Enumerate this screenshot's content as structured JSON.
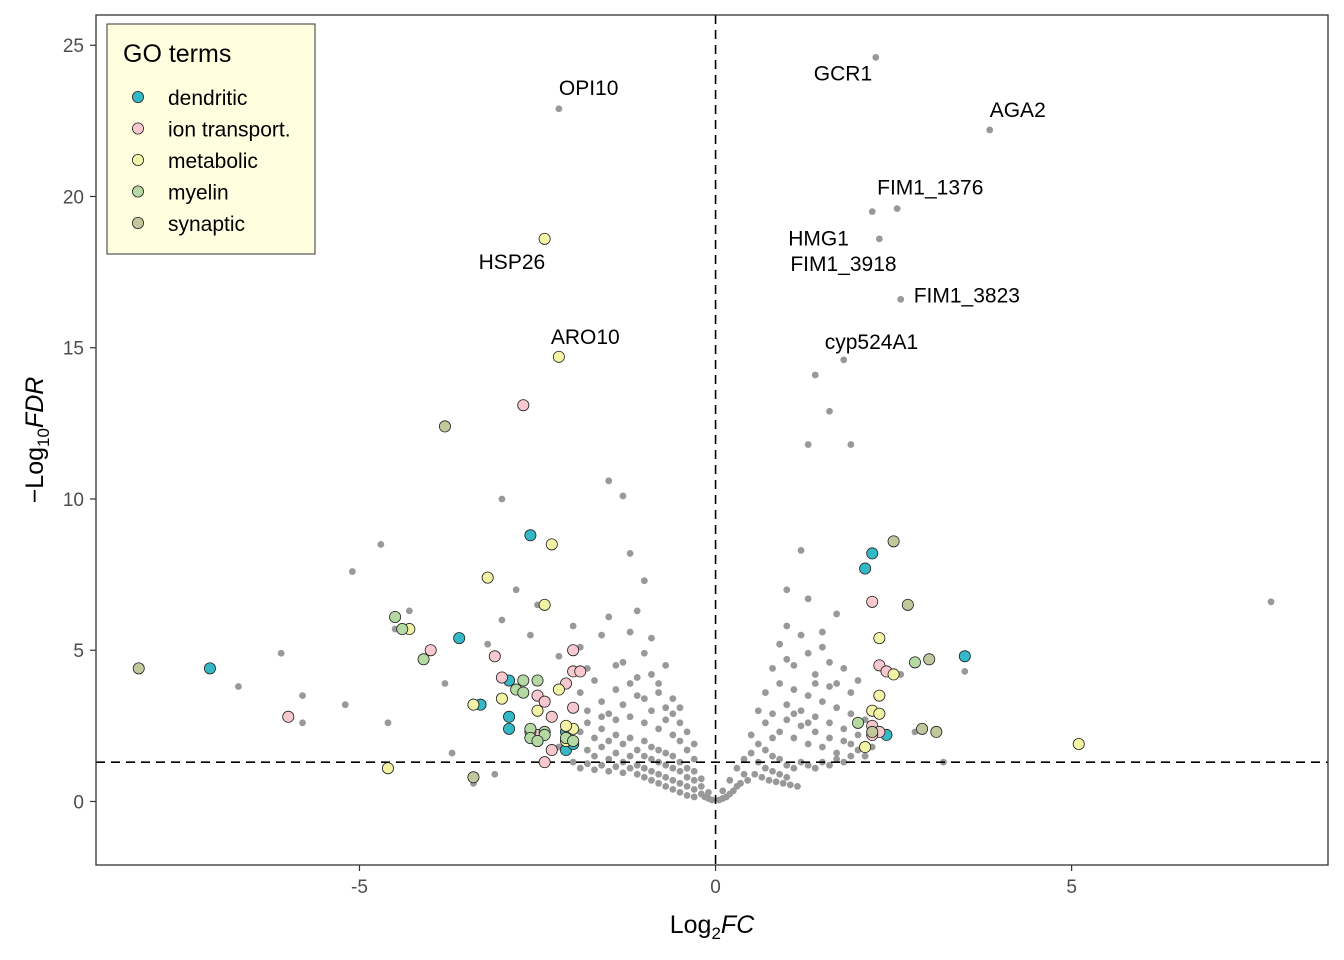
{
  "chart_data": {
    "type": "scatter",
    "title": "",
    "xlabel": "Log2FC",
    "ylabel": "-Log10FDR",
    "xlim": [
      -8.7,
      8.6
    ],
    "ylim": [
      -2.1,
      26.0
    ],
    "x_ticks": [
      -5,
      0,
      5
    ],
    "x_tick_labels": [
      "-5",
      "0",
      "5"
    ],
    "y_ticks": [
      0,
      5,
      10,
      15,
      20,
      25
    ],
    "y_tick_labels": [
      "0",
      "5",
      "10",
      "15",
      "20",
      "25"
    ],
    "grid": false,
    "reference_lines": {
      "vertical_x": 0,
      "horizontal_y": 1.3
    },
    "legend": {
      "title": "GO terms",
      "position": "top-left",
      "entries": [
        {
          "name": "dendritic",
          "color": "#35b8c6"
        },
        {
          "name": "ion transport.",
          "color": "#f7c9cf"
        },
        {
          "name": "metabolic",
          "color": "#f3f3a6"
        },
        {
          "name": "myelin",
          "color": "#b5d9a3"
        },
        {
          "name": "synaptic",
          "color": "#c2c79c"
        }
      ]
    },
    "background_color": "#999999",
    "background_points": [
      [
        -1.5,
        10.6
      ],
      [
        -1.3,
        10.1
      ],
      [
        -1.2,
        8.2
      ],
      [
        -1.0,
        7.3
      ],
      [
        -3.0,
        10.0
      ],
      [
        -5.1,
        7.6
      ],
      [
        -4.7,
        8.5
      ],
      [
        -6.1,
        4.9
      ],
      [
        -6.7,
        3.8
      ],
      [
        -5.2,
        3.2
      ],
      [
        -5.8,
        2.6
      ],
      [
        -4.6,
        2.6
      ],
      [
        -5.8,
        3.5
      ],
      [
        -4.5,
        5.7
      ],
      [
        -4.3,
        6.3
      ],
      [
        -3.8,
        3.9
      ],
      [
        -3.7,
        1.6
      ],
      [
        -3.1,
        0.9
      ],
      [
        -3.4,
        0.6
      ],
      [
        -4.0,
        5.0
      ],
      [
        -3.2,
        5.2
      ],
      [
        -3.0,
        6.0
      ],
      [
        -2.8,
        7.0
      ],
      [
        -2.5,
        6.5
      ],
      [
        -2.6,
        5.5
      ],
      [
        -2.2,
        4.8
      ],
      [
        -2.0,
        5.8
      ],
      [
        -1.9,
        5.1
      ],
      [
        -1.8,
        4.4
      ],
      [
        -1.6,
        5.5
      ],
      [
        -1.5,
        6.1
      ],
      [
        -1.3,
        4.6
      ],
      [
        -1.2,
        5.6
      ],
      [
        -1.1,
        6.3
      ],
      [
        -1.0,
        4.9
      ],
      [
        -0.9,
        4.2
      ],
      [
        -0.9,
        5.4
      ],
      [
        -0.8,
        3.6
      ],
      [
        -0.7,
        4.5
      ],
      [
        -0.7,
        3.1
      ],
      [
        -1.9,
        3.6
      ],
      [
        -1.7,
        4.0
      ],
      [
        -1.6,
        3.3
      ],
      [
        -1.5,
        2.9
      ],
      [
        -1.4,
        3.7
      ],
      [
        -1.3,
        3.2
      ],
      [
        -1.2,
        2.8
      ],
      [
        -1.1,
        3.5
      ],
      [
        -1.0,
        2.6
      ],
      [
        -0.9,
        3.0
      ],
      [
        -0.8,
        2.4
      ],
      [
        -0.7,
        2.7
      ],
      [
        -0.6,
        2.2
      ],
      [
        -0.6,
        2.9
      ],
      [
        -0.5,
        2.0
      ],
      [
        -0.5,
        2.6
      ],
      [
        -0.4,
        1.7
      ],
      [
        -0.4,
        2.3
      ],
      [
        -0.3,
        1.4
      ],
      [
        -0.3,
        1.9
      ],
      [
        -2.4,
        2.1
      ],
      [
        -2.2,
        1.8
      ],
      [
        -2.1,
        2.5
      ],
      [
        -2.0,
        2.0
      ],
      [
        -1.9,
        2.3
      ],
      [
        -1.8,
        1.7
      ],
      [
        -1.8,
        2.6
      ],
      [
        -1.7,
        1.5
      ],
      [
        -1.7,
        2.1
      ],
      [
        -1.6,
        1.8
      ],
      [
        -1.6,
        2.4
      ],
      [
        -1.5,
        1.4
      ],
      [
        -1.5,
        2.0
      ],
      [
        -1.4,
        1.6
      ],
      [
        -1.4,
        2.2
      ],
      [
        -1.3,
        1.3
      ],
      [
        -1.3,
        1.9
      ],
      [
        -1.2,
        1.5
      ],
      [
        -1.2,
        2.1
      ],
      [
        -1.1,
        1.2
      ],
      [
        -1.1,
        1.7
      ],
      [
        -1.0,
        1.1
      ],
      [
        -1.0,
        1.5
      ],
      [
        -1.0,
        2.0
      ],
      [
        -0.9,
        1.0
      ],
      [
        -0.9,
        1.4
      ],
      [
        -0.9,
        1.8
      ],
      [
        -0.8,
        0.9
      ],
      [
        -0.8,
        1.3
      ],
      [
        -0.8,
        1.7
      ],
      [
        -0.7,
        0.8
      ],
      [
        -0.7,
        1.2
      ],
      [
        -0.7,
        1.6
      ],
      [
        -0.6,
        0.7
      ],
      [
        -0.6,
        1.1
      ],
      [
        -0.6,
        1.5
      ],
      [
        -0.5,
        0.6
      ],
      [
        -0.5,
        1.0
      ],
      [
        -0.5,
        1.3
      ],
      [
        -0.4,
        0.5
      ],
      [
        -0.4,
        0.8
      ],
      [
        -0.4,
        1.1
      ],
      [
        -0.3,
        0.4
      ],
      [
        -0.3,
        0.7
      ],
      [
        -0.3,
        1.0
      ],
      [
        -0.2,
        0.25
      ],
      [
        -0.2,
        0.5
      ],
      [
        -0.2,
        0.75
      ],
      [
        -0.15,
        0.15
      ],
      [
        -0.1,
        0.1
      ],
      [
        -0.1,
        0.3
      ],
      [
        -0.05,
        0.05
      ],
      [
        -2.0,
        1.3
      ],
      [
        -1.9,
        1.1
      ],
      [
        -1.8,
        1.25
      ],
      [
        -1.7,
        1.05
      ],
      [
        -1.6,
        1.2
      ],
      [
        -1.5,
        1.0
      ],
      [
        -1.4,
        1.15
      ],
      [
        -1.3,
        0.95
      ],
      [
        -1.2,
        1.1
      ],
      [
        -1.1,
        0.9
      ],
      [
        -1.0,
        0.8
      ],
      [
        -0.9,
        0.7
      ],
      [
        -0.8,
        0.6
      ],
      [
        -0.7,
        0.5
      ],
      [
        -0.6,
        0.4
      ],
      [
        -0.5,
        0.3
      ],
      [
        -0.4,
        0.2
      ],
      [
        -0.3,
        0.15
      ],
      [
        -1.6,
        2.8
      ],
      [
        -1.4,
        2.7
      ],
      [
        -1.2,
        3.9
      ],
      [
        -1.0,
        3.4
      ],
      [
        -0.8,
        3.9
      ],
      [
        -0.6,
        3.4
      ],
      [
        -0.5,
        3.1
      ],
      [
        -1.8,
        3.0
      ],
      [
        -1.1,
        4.1
      ],
      [
        -1.4,
        4.5
      ],
      [
        1.3,
        11.8
      ],
      [
        1.6,
        12.9
      ],
      [
        1.9,
        11.8
      ],
      [
        1.2,
        8.3
      ],
      [
        1.0,
        7.0
      ],
      [
        1.3,
        6.7
      ],
      [
        1.5,
        5.6
      ],
      [
        1.7,
        6.2
      ],
      [
        1.4,
        14.1
      ],
      [
        2.6,
        4.2
      ],
      [
        3.2,
        1.3
      ],
      [
        3.5,
        4.3
      ],
      [
        7.8,
        6.6
      ],
      [
        2.8,
        2.3
      ],
      [
        2.1,
        2.7
      ],
      [
        0.9,
        5.2
      ],
      [
        1.0,
        5.8
      ],
      [
        1.1,
        4.5
      ],
      [
        1.2,
        5.5
      ],
      [
        1.3,
        4.9
      ],
      [
        1.4,
        4.2
      ],
      [
        1.5,
        5.1
      ],
      [
        1.6,
        4.6
      ],
      [
        1.7,
        3.9
      ],
      [
        1.8,
        4.4
      ],
      [
        1.9,
        3.6
      ],
      [
        2.0,
        4.0
      ],
      [
        0.8,
        4.4
      ],
      [
        0.7,
        3.6
      ],
      [
        0.9,
        3.9
      ],
      [
        1.0,
        3.2
      ],
      [
        1.1,
        3.7
      ],
      [
        1.2,
        3.0
      ],
      [
        1.3,
        3.5
      ],
      [
        1.4,
        2.8
      ],
      [
        1.5,
        3.3
      ],
      [
        1.6,
        2.6
      ],
      [
        1.7,
        3.1
      ],
      [
        1.8,
        2.4
      ],
      [
        1.9,
        2.9
      ],
      [
        2.0,
        2.2
      ],
      [
        0.6,
        3.0
      ],
      [
        0.7,
        2.6
      ],
      [
        0.8,
        2.9
      ],
      [
        0.9,
        2.3
      ],
      [
        1.0,
        2.7
      ],
      [
        1.1,
        2.1
      ],
      [
        1.2,
        2.5
      ],
      [
        1.3,
        1.9
      ],
      [
        1.4,
        2.3
      ],
      [
        1.5,
        1.8
      ],
      [
        1.6,
        2.1
      ],
      [
        1.7,
        1.6
      ],
      [
        1.8,
        2.0
      ],
      [
        1.9,
        1.5
      ],
      [
        0.5,
        2.2
      ],
      [
        0.5,
        1.6
      ],
      [
        0.6,
        1.9
      ],
      [
        0.6,
        1.3
      ],
      [
        0.7,
        1.7
      ],
      [
        0.7,
        1.1
      ],
      [
        0.8,
        1.5
      ],
      [
        0.8,
        1.0
      ],
      [
        0.9,
        1.4
      ],
      [
        0.9,
        0.9
      ],
      [
        1.0,
        1.2
      ],
      [
        1.0,
        0.8
      ],
      [
        1.1,
        1.1
      ],
      [
        1.2,
        1.3
      ],
      [
        1.3,
        1.2
      ],
      [
        1.4,
        1.1
      ],
      [
        1.5,
        1.3
      ],
      [
        1.6,
        1.2
      ],
      [
        1.7,
        1.4
      ],
      [
        1.8,
        1.3
      ],
      [
        0.4,
        1.4
      ],
      [
        0.4,
        0.9
      ],
      [
        0.35,
        0.6
      ],
      [
        0.3,
        1.1
      ],
      [
        0.3,
        0.5
      ],
      [
        0.25,
        0.35
      ],
      [
        0.2,
        0.7
      ],
      [
        0.2,
        0.25
      ],
      [
        0.15,
        0.15
      ],
      [
        0.1,
        0.1
      ],
      [
        0.1,
        0.35
      ],
      [
        0.05,
        0.05
      ],
      [
        0.45,
        0.7
      ],
      [
        0.55,
        0.9
      ],
      [
        0.65,
        0.8
      ],
      [
        0.75,
        0.7
      ],
      [
        0.85,
        0.65
      ],
      [
        0.95,
        0.6
      ],
      [
        1.05,
        0.55
      ],
      [
        1.15,
        0.5
      ],
      [
        2.1,
        1.5
      ],
      [
        2.2,
        1.8
      ],
      [
        1.9,
        1.9
      ],
      [
        2.0,
        1.7
      ],
      [
        0.8,
        2.1
      ],
      [
        1.3,
        2.6
      ],
      [
        1.6,
        3.8
      ],
      [
        1.0,
        4.7
      ],
      [
        1.4,
        3.9
      ],
      [
        1.1,
        2.9
      ]
    ],
    "labeled_genes": [
      {
        "name": "OPI10",
        "x": -2.2,
        "y": 22.9
      },
      {
        "name": "GCR1",
        "x": 2.25,
        "y": 24.6
      },
      {
        "name": "AGA2",
        "x": 3.85,
        "y": 22.2
      },
      {
        "name": "FIM1_1376",
        "x": 2.55,
        "y": 19.6
      },
      {
        "name": "HMG1",
        "x": 2.2,
        "y": 19.5
      },
      {
        "name": "FIM1_3918",
        "x": 2.3,
        "y": 18.6
      },
      {
        "name": "FIM1_3823",
        "x": 2.6,
        "y": 16.6
      },
      {
        "name": "cyp524A1",
        "x": 1.8,
        "y": 14.6
      },
      {
        "name": "HSP26",
        "x": -2.4,
        "y": 18.6
      },
      {
        "name": "ARO10",
        "x": -2.2,
        "y": 14.7
      }
    ],
    "series": [
      {
        "name": "dendritic",
        "color": "#35b8c6",
        "points": [
          [
            -7.1,
            4.4
          ],
          [
            -3.6,
            5.4
          ],
          [
            -2.6,
            8.8
          ],
          [
            -3.3,
            3.2
          ],
          [
            -2.9,
            4.0
          ],
          [
            -2.9,
            2.8
          ],
          [
            -2.9,
            2.4
          ],
          [
            -2.1,
            1.7
          ],
          [
            -2.1,
            2.3
          ],
          [
            -2.0,
            1.9
          ],
          [
            2.2,
            8.2
          ],
          [
            2.1,
            7.7
          ],
          [
            3.5,
            4.8
          ],
          [
            2.4,
            2.2
          ]
        ]
      },
      {
        "name": "ion transport.",
        "color": "#f7c9cf",
        "points": [
          [
            -2.7,
            13.1
          ],
          [
            -6.0,
            2.8
          ],
          [
            -4.0,
            5.0
          ],
          [
            -3.1,
            4.8
          ],
          [
            -3.0,
            4.1
          ],
          [
            -2.5,
            3.5
          ],
          [
            -2.4,
            3.3
          ],
          [
            -2.3,
            2.8
          ],
          [
            -2.1,
            3.9
          ],
          [
            -2.0,
            5.0
          ],
          [
            -2.0,
            4.3
          ],
          [
            -1.9,
            4.3
          ],
          [
            -2.0,
            3.1
          ],
          [
            -2.5,
            2.2
          ],
          [
            -2.6,
            2.3
          ],
          [
            -2.3,
            1.7
          ],
          [
            -2.4,
            1.3
          ],
          [
            2.2,
            6.6
          ],
          [
            2.3,
            4.5
          ],
          [
            2.4,
            4.3
          ],
          [
            2.2,
            2.5
          ],
          [
            2.3,
            2.3
          ],
          [
            2.2,
            2.2
          ]
        ]
      },
      {
        "name": "metabolic",
        "color": "#f3f3a6",
        "points": [
          [
            -2.4,
            18.6
          ],
          [
            -2.2,
            14.7
          ],
          [
            -2.3,
            8.5
          ],
          [
            -3.2,
            7.4
          ],
          [
            -2.4,
            6.5
          ],
          [
            -4.3,
            5.7
          ],
          [
            -3.4,
            3.2
          ],
          [
            -3.0,
            3.4
          ],
          [
            -2.2,
            3.7
          ],
          [
            -2.5,
            3.0
          ],
          [
            -2.0,
            2.4
          ],
          [
            -2.5,
            2.0
          ],
          [
            -2.1,
            2.5
          ],
          [
            -2.1,
            2.0
          ],
          [
            -4.6,
            1.1
          ],
          [
            2.3,
            5.4
          ],
          [
            2.5,
            4.2
          ],
          [
            2.3,
            3.5
          ],
          [
            2.2,
            3.0
          ],
          [
            2.3,
            2.9
          ],
          [
            2.1,
            1.8
          ],
          [
            5.1,
            1.9
          ]
        ]
      },
      {
        "name": "myelin",
        "color": "#b5d9a3",
        "points": [
          [
            -4.5,
            6.1
          ],
          [
            -4.4,
            5.7
          ],
          [
            -4.1,
            4.7
          ],
          [
            -2.7,
            4.0
          ],
          [
            -2.5,
            4.0
          ],
          [
            -2.8,
            3.7
          ],
          [
            -2.7,
            3.6
          ],
          [
            -2.6,
            2.4
          ],
          [
            -2.4,
            2.3
          ],
          [
            -2.4,
            2.2
          ],
          [
            -2.6,
            2.1
          ],
          [
            -2.5,
            2.0
          ],
          [
            -2.1,
            2.1
          ],
          [
            -2.0,
            2.0
          ],
          [
            2.0,
            2.6
          ],
          [
            2.8,
            4.6
          ]
        ]
      },
      {
        "name": "synaptic",
        "color": "#c2c79c",
        "points": [
          [
            -8.1,
            4.4
          ],
          [
            -3.8,
            12.4
          ],
          [
            -3.4,
            0.8
          ],
          [
            2.5,
            8.6
          ],
          [
            2.7,
            6.5
          ],
          [
            3.0,
            4.7
          ],
          [
            2.9,
            2.4
          ],
          [
            3.1,
            2.3
          ],
          [
            2.2,
            2.3
          ]
        ]
      }
    ]
  }
}
